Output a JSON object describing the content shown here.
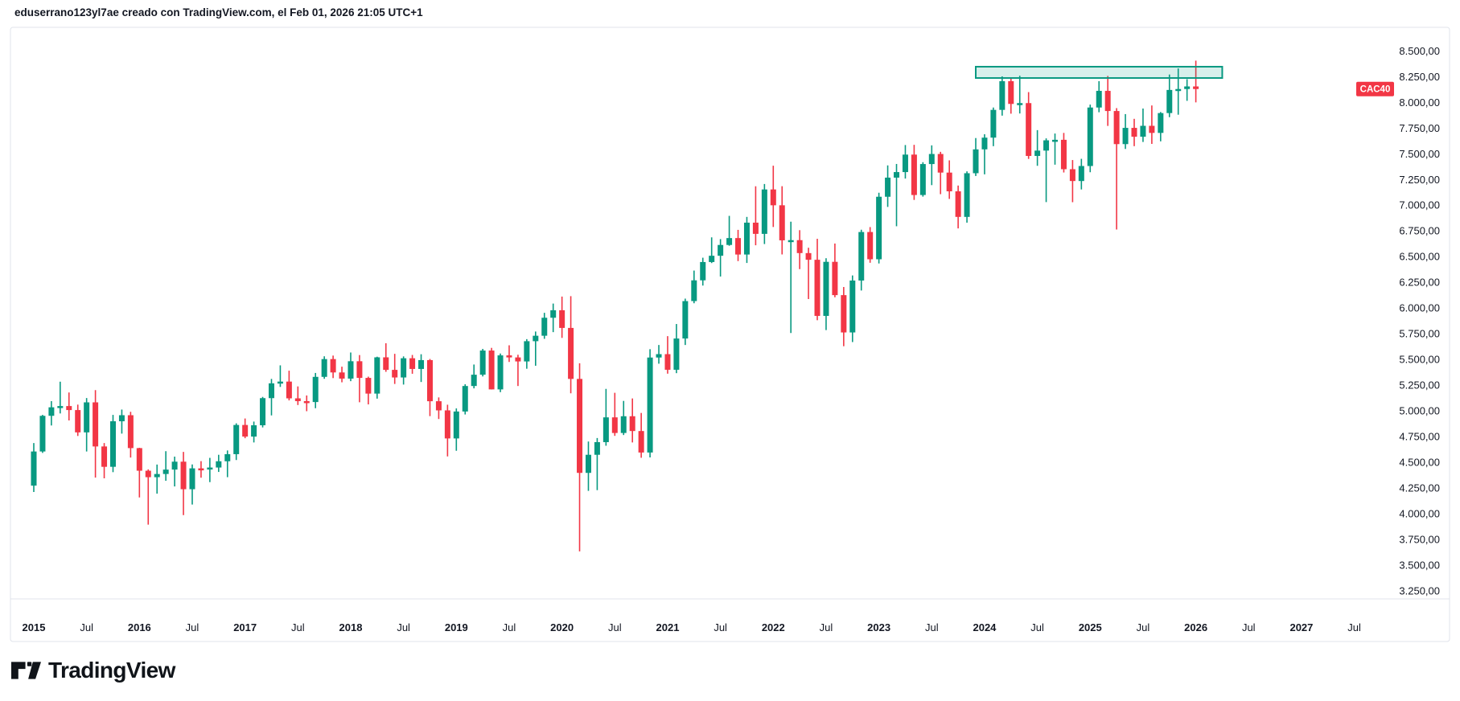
{
  "header": {
    "credit_line": "eduserrano123yl7ae creado con TradingView.com, el Feb 01, 2026 21:05 UTC+1"
  },
  "footer": {
    "brand": "TradingView"
  },
  "symbol_badge": {
    "text": "CAC40",
    "color": "#f23645",
    "text_color": "#ffffff"
  },
  "colors": {
    "up": "#089981",
    "down": "#f23645",
    "axis_text": "#131722",
    "frame": "#e0e3eb",
    "background": "#ffffff",
    "zone_fill": "rgba(8,153,129,0.16)",
    "zone_stroke": "#089981"
  },
  "chart_data": {
    "type": "candlestick",
    "symbol": "CAC40",
    "timeframe": "monthly",
    "grid": "off",
    "legend_position": "none",
    "y_axis": {
      "side": "right",
      "plot_top_price": 8730,
      "plot_bottom_price": 3170,
      "tick_step": 250,
      "ticks": [
        {
          "value": 8500,
          "label": "8.500,00"
        },
        {
          "value": 8250,
          "label": "8.250,00"
        },
        {
          "value": 8000,
          "label": "8.000,00"
        },
        {
          "value": 7750,
          "label": "7.750,00"
        },
        {
          "value": 7500,
          "label": "7.500,00"
        },
        {
          "value": 7250,
          "label": "7.250,00"
        },
        {
          "value": 7000,
          "label": "7.000,00"
        },
        {
          "value": 6750,
          "label": "6.750,00"
        },
        {
          "value": 6500,
          "label": "6.500,00"
        },
        {
          "value": 6250,
          "label": "6.250,00"
        },
        {
          "value": 6000,
          "label": "6.000,00"
        },
        {
          "value": 5750,
          "label": "5.750,00"
        },
        {
          "value": 5500,
          "label": "5.500,00"
        },
        {
          "value": 5250,
          "label": "5.250,00"
        },
        {
          "value": 5000,
          "label": "5.000,00"
        },
        {
          "value": 4750,
          "label": "4.750,00"
        },
        {
          "value": 4500,
          "label": "4.500,00"
        },
        {
          "value": 4250,
          "label": "4.250,00"
        },
        {
          "value": 4000,
          "label": "4.000,00"
        },
        {
          "value": 3750,
          "label": "3.750,00"
        },
        {
          "value": 3500,
          "label": "3.500,00"
        },
        {
          "value": 3250,
          "label": "3.250,00"
        }
      ]
    },
    "x_axis": {
      "start_month": "2015-01",
      "ticks": [
        {
          "label": "2015",
          "month_index": 0,
          "bold": true
        },
        {
          "label": "Jul",
          "month_index": 6,
          "bold": false
        },
        {
          "label": "2016",
          "month_index": 12,
          "bold": true
        },
        {
          "label": "Jul",
          "month_index": 18,
          "bold": false
        },
        {
          "label": "2017",
          "month_index": 24,
          "bold": true
        },
        {
          "label": "Jul",
          "month_index": 30,
          "bold": false
        },
        {
          "label": "2018",
          "month_index": 36,
          "bold": true
        },
        {
          "label": "Jul",
          "month_index": 42,
          "bold": false
        },
        {
          "label": "2019",
          "month_index": 48,
          "bold": true
        },
        {
          "label": "Jul",
          "month_index": 54,
          "bold": false
        },
        {
          "label": "2020",
          "month_index": 60,
          "bold": true
        },
        {
          "label": "Jul",
          "month_index": 66,
          "bold": false
        },
        {
          "label": "2021",
          "month_index": 72,
          "bold": true
        },
        {
          "label": "Jul",
          "month_index": 78,
          "bold": false
        },
        {
          "label": "2022",
          "month_index": 84,
          "bold": true
        },
        {
          "label": "Jul",
          "month_index": 90,
          "bold": false
        },
        {
          "label": "2023",
          "month_index": 96,
          "bold": true
        },
        {
          "label": "Jul",
          "month_index": 102,
          "bold": false
        },
        {
          "label": "2024",
          "month_index": 108,
          "bold": true
        },
        {
          "label": "Jul",
          "month_index": 114,
          "bold": false
        },
        {
          "label": "2025",
          "month_index": 120,
          "bold": true
        },
        {
          "label": "Jul",
          "month_index": 126,
          "bold": false
        },
        {
          "label": "2026",
          "month_index": 132,
          "bold": true
        },
        {
          "label": "Jul",
          "month_index": 138,
          "bold": false
        },
        {
          "label": "2027",
          "month_index": 144,
          "bold": true
        },
        {
          "label": "Jul",
          "month_index": 150,
          "bold": false
        }
      ]
    },
    "zone": {
      "description": "horizontal resistance rectangle drawing",
      "start_month": "2023-12",
      "end_month": "2026-04",
      "start_index": 107,
      "end_index": 135,
      "price_top": 8347,
      "price_bottom": 8237
    },
    "series_columns": [
      "month",
      "open",
      "high",
      "low",
      "close"
    ],
    "series": [
      [
        "2015-01",
        4272,
        4686,
        4210,
        4604
      ],
      [
        "2015-02",
        4604,
        4960,
        4590,
        4951
      ],
      [
        "2015-03",
        4951,
        5094,
        4857,
        5034
      ],
      [
        "2015-04",
        5034,
        5283,
        4974,
        5046
      ],
      [
        "2015-05",
        5046,
        5178,
        4906,
        5007
      ],
      [
        "2015-06",
        5007,
        5060,
        4755,
        4790
      ],
      [
        "2015-07",
        4790,
        5124,
        4604,
        5082
      ],
      [
        "2015-08",
        5082,
        5201,
        4350,
        4653
      ],
      [
        "2015-09",
        4653,
        4686,
        4343,
        4455
      ],
      [
        "2015-10",
        4455,
        4960,
        4403,
        4898
      ],
      [
        "2015-11",
        4898,
        5012,
        4778,
        4957
      ],
      [
        "2015-12",
        4957,
        4990,
        4545,
        4637
      ],
      [
        "2016-01",
        4637,
        4640,
        4157,
        4417
      ],
      [
        "2016-02",
        4417,
        4430,
        3892,
        4354
      ],
      [
        "2016-03",
        4354,
        4477,
        4194,
        4385
      ],
      [
        "2016-04",
        4385,
        4607,
        4319,
        4428
      ],
      [
        "2016-05",
        4428,
        4554,
        4264,
        4505
      ],
      [
        "2016-06",
        4505,
        4600,
        3985,
        4237
      ],
      [
        "2016-07",
        4237,
        4478,
        4088,
        4440
      ],
      [
        "2016-08",
        4440,
        4510,
        4349,
        4438
      ],
      [
        "2016-09",
        4438,
        4542,
        4306,
        4448
      ],
      [
        "2016-10",
        4448,
        4572,
        4405,
        4509
      ],
      [
        "2016-11",
        4509,
        4614,
        4354,
        4578
      ],
      [
        "2016-12",
        4578,
        4878,
        4521,
        4862
      ],
      [
        "2017-01",
        4862,
        4925,
        4733,
        4749
      ],
      [
        "2017-02",
        4749,
        4895,
        4692,
        4859
      ],
      [
        "2017-03",
        4859,
        5135,
        4838,
        5123
      ],
      [
        "2017-04",
        5123,
        5310,
        4955,
        5267
      ],
      [
        "2017-05",
        5267,
        5442,
        5232,
        5284
      ],
      [
        "2017-06",
        5284,
        5390,
        5101,
        5121
      ],
      [
        "2017-07",
        5121,
        5237,
        5056,
        5094
      ],
      [
        "2017-08",
        5094,
        5149,
        4996,
        5085
      ],
      [
        "2017-09",
        5085,
        5368,
        5025,
        5330
      ],
      [
        "2017-10",
        5330,
        5530,
        5311,
        5503
      ],
      [
        "2017-11",
        5503,
        5537,
        5318,
        5373
      ],
      [
        "2017-12",
        5373,
        5429,
        5277,
        5313
      ],
      [
        "2018-01",
        5313,
        5567,
        5288,
        5482
      ],
      [
        "2018-02",
        5482,
        5542,
        5083,
        5320
      ],
      [
        "2018-03",
        5320,
        5332,
        5062,
        5167
      ],
      [
        "2018-04",
        5167,
        5526,
        5118,
        5520
      ],
      [
        "2018-05",
        5520,
        5657,
        5379,
        5398
      ],
      [
        "2018-06",
        5398,
        5554,
        5261,
        5324
      ],
      [
        "2018-07",
        5324,
        5529,
        5255,
        5511
      ],
      [
        "2018-08",
        5511,
        5543,
        5360,
        5407
      ],
      [
        "2018-09",
        5407,
        5550,
        5280,
        5493
      ],
      [
        "2018-10",
        5493,
        5504,
        4948,
        5093
      ],
      [
        "2018-11",
        5093,
        5130,
        4920,
        5004
      ],
      [
        "2018-12",
        5004,
        5059,
        4556,
        4731
      ],
      [
        "2019-01",
        4731,
        5023,
        4611,
        4993
      ],
      [
        "2019-02",
        4993,
        5258,
        4964,
        5241
      ],
      [
        "2019-03",
        5241,
        5450,
        5218,
        5351
      ],
      [
        "2019-04",
        5351,
        5602,
        5334,
        5586
      ],
      [
        "2019-05",
        5586,
        5612,
        5207,
        5208
      ],
      [
        "2019-06",
        5208,
        5557,
        5181,
        5539
      ],
      [
        "2019-07",
        5539,
        5637,
        5475,
        5519
      ],
      [
        "2019-08",
        5519,
        5545,
        5241,
        5480
      ],
      [
        "2019-09",
        5480,
        5697,
        5409,
        5677
      ],
      [
        "2019-10",
        5677,
        5771,
        5438,
        5730
      ],
      [
        "2019-11",
        5730,
        5953,
        5700,
        5905
      ],
      [
        "2019-12",
        5905,
        6043,
        5765,
        5978
      ],
      [
        "2020-01",
        5978,
        6111,
        5709,
        5806
      ],
      [
        "2020-02",
        5806,
        6115,
        5170,
        5310
      ],
      [
        "2020-03",
        5310,
        5462,
        3632,
        4396
      ],
      [
        "2020-04",
        4396,
        4701,
        4221,
        4572
      ],
      [
        "2020-05",
        4572,
        4735,
        4228,
        4695
      ],
      [
        "2020-06",
        4695,
        5213,
        4660,
        4936
      ],
      [
        "2020-07",
        4936,
        5175,
        4756,
        4784
      ],
      [
        "2020-08",
        4784,
        5096,
        4764,
        4947
      ],
      [
        "2020-09",
        4947,
        5120,
        4692,
        4803
      ],
      [
        "2020-10",
        4803,
        4979,
        4543,
        4594
      ],
      [
        "2020-11",
        4594,
        5599,
        4546,
        5518
      ],
      [
        "2020-12",
        5518,
        5640,
        5458,
        5551
      ],
      [
        "2021-01",
        5551,
        5726,
        5361,
        5399
      ],
      [
        "2021-02",
        5399,
        5844,
        5366,
        5703
      ],
      [
        "2021-03",
        5703,
        6091,
        5640,
        6067
      ],
      [
        "2021-04",
        6067,
        6364,
        6046,
        6269
      ],
      [
        "2021-05",
        6269,
        6489,
        6218,
        6447
      ],
      [
        "2021-06",
        6447,
        6687,
        6437,
        6508
      ],
      [
        "2021-07",
        6508,
        6670,
        6306,
        6613
      ],
      [
        "2021-08",
        6613,
        6896,
        6605,
        6680
      ],
      [
        "2021-09",
        6680,
        6760,
        6456,
        6520
      ],
      [
        "2021-10",
        6520,
        6886,
        6438,
        6830
      ],
      [
        "2021-11",
        6830,
        7184,
        6610,
        6721
      ],
      [
        "2021-12",
        6721,
        7206,
        6622,
        7153
      ],
      [
        "2022-01",
        7153,
        7384,
        6788,
        6999
      ],
      [
        "2022-02",
        6999,
        7185,
        6521,
        6658
      ],
      [
        "2022-03",
        6658,
        6840,
        5756,
        6660
      ],
      [
        "2022-04",
        6660,
        6757,
        6378,
        6534
      ],
      [
        "2022-05",
        6534,
        6586,
        6087,
        6469
      ],
      [
        "2022-06",
        6469,
        6673,
        5881,
        5923
      ],
      [
        "2022-07",
        5923,
        6484,
        5785,
        6449
      ],
      [
        "2022-08",
        6449,
        6627,
        6104,
        6125
      ],
      [
        "2022-09",
        6125,
        6204,
        5628,
        5762
      ],
      [
        "2022-10",
        5762,
        6317,
        5668,
        6267
      ],
      [
        "2022-11",
        6267,
        6761,
        6170,
        6739
      ],
      [
        "2022-12",
        6739,
        6787,
        6440,
        6474
      ],
      [
        "2023-01",
        6474,
        7121,
        6433,
        7082
      ],
      [
        "2023-02",
        7082,
        7387,
        6983,
        7268
      ],
      [
        "2023-03",
        7268,
        7401,
        6795,
        7322
      ],
      [
        "2023-04",
        7322,
        7585,
        7259,
        7492
      ],
      [
        "2023-05",
        7492,
        7587,
        7051,
        7099
      ],
      [
        "2023-06",
        7099,
        7418,
        7083,
        7400
      ],
      [
        "2023-07",
        7400,
        7582,
        7195,
        7498
      ],
      [
        "2023-08",
        7498,
        7519,
        7107,
        7317
      ],
      [
        "2023-09",
        7317,
        7436,
        7061,
        7135
      ],
      [
        "2023-10",
        7135,
        7191,
        6774,
        6886
      ],
      [
        "2023-11",
        6886,
        7329,
        6830,
        7311
      ],
      [
        "2023-12",
        7311,
        7653,
        7284,
        7543
      ],
      [
        "2024-01",
        7543,
        7690,
        7300,
        7657
      ],
      [
        "2024-02",
        7657,
        7950,
        7574,
        7927
      ],
      [
        "2024-03",
        7927,
        8253,
        7871,
        8206
      ],
      [
        "2024-04",
        8206,
        8239,
        7890,
        7985
      ],
      [
        "2024-05",
        7985,
        8259,
        7892,
        7993
      ],
      [
        "2024-06",
        7993,
        8100,
        7450,
        7479
      ],
      [
        "2024-07",
        7479,
        7730,
        7383,
        7531
      ],
      [
        "2024-08",
        7531,
        7650,
        7030,
        7631
      ],
      [
        "2024-09",
        7631,
        7697,
        7394,
        7636
      ],
      [
        "2024-10",
        7636,
        7703,
        7318,
        7350
      ],
      [
        "2024-11",
        7350,
        7439,
        7029,
        7235
      ],
      [
        "2024-12",
        7235,
        7451,
        7153,
        7381
      ],
      [
        "2025-01",
        7381,
        7978,
        7320,
        7950
      ],
      [
        "2025-02",
        7950,
        8206,
        7904,
        8112
      ],
      [
        "2025-03",
        8112,
        8257,
        7771,
        7916
      ],
      [
        "2025-04",
        7916,
        7944,
        6763,
        7594
      ],
      [
        "2025-05",
        7594,
        7886,
        7547,
        7752
      ],
      [
        "2025-06",
        7752,
        7840,
        7574,
        7666
      ],
      [
        "2025-07",
        7666,
        7940,
        7615,
        7772
      ],
      [
        "2025-08",
        7772,
        7970,
        7596,
        7703
      ],
      [
        "2025-09",
        7703,
        7906,
        7621,
        7896
      ],
      [
        "2025-10",
        7896,
        8271,
        7856,
        8121
      ],
      [
        "2025-11",
        8121,
        8330,
        7880,
        8130
      ],
      [
        "2025-12",
        8130,
        8226,
        8015,
        8155
      ],
      [
        "2026-01",
        8155,
        8406,
        8000,
        8130
      ]
    ]
  }
}
